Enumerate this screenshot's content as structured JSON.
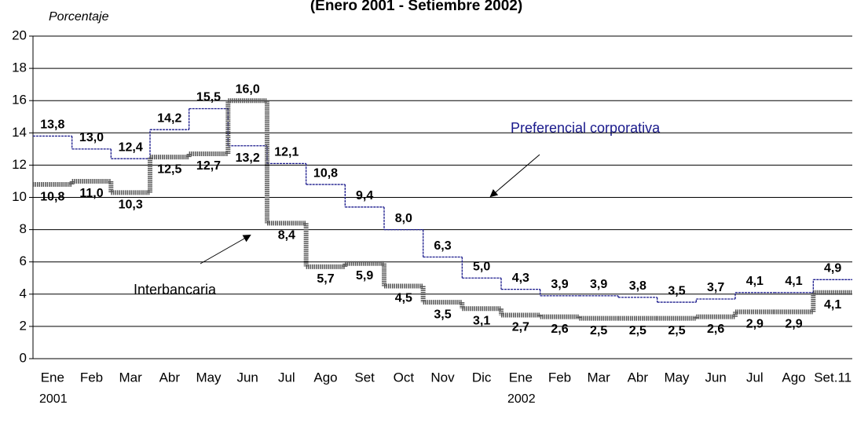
{
  "chart_data": {
    "type": "step-line",
    "title": "(Enero 2001 - Setiembre 2002)",
    "y_label": "Porcentaje",
    "categories": [
      "Ene",
      "Feb",
      "Mar",
      "Abr",
      "May",
      "Jun",
      "Jul",
      "Ago",
      "Set",
      "Oct",
      "Nov",
      "Dic",
      "Ene",
      "Feb",
      "Mar",
      "Abr",
      "May",
      "Jun",
      "Jul",
      "Ago",
      "Set.11"
    ],
    "category_years": [
      "2001",
      null,
      null,
      null,
      null,
      null,
      null,
      null,
      null,
      null,
      null,
      null,
      "2002",
      null,
      null,
      null,
      null,
      null,
      null,
      null,
      null
    ],
    "series": [
      {
        "name": "Preferencial corporativa",
        "color": "#1a1a8c",
        "values": [
          13.8,
          13.0,
          12.4,
          14.2,
          15.5,
          13.2,
          12.1,
          10.8,
          9.4,
          8.0,
          6.3,
          5.0,
          4.3,
          3.9,
          3.9,
          3.8,
          3.5,
          3.7,
          4.1,
          4.1,
          4.9
        ],
        "value_labels": [
          "13,8",
          "13,0",
          "12,4",
          "14,2",
          "15,5",
          "13,2",
          "12,1",
          "10,8",
          "9,4",
          "8,0",
          "6,3",
          "5,0",
          "4,3",
          "3,9",
          "3,9",
          "3,8",
          "3,5",
          "3,7",
          "4,1",
          "4,1",
          "4,9"
        ]
      },
      {
        "name": "Interbancaria",
        "color": "#555555",
        "values": [
          10.8,
          11.0,
          10.3,
          12.5,
          12.7,
          16.0,
          8.4,
          5.7,
          5.9,
          4.5,
          3.5,
          3.1,
          2.7,
          2.6,
          2.5,
          2.5,
          2.5,
          2.6,
          2.9,
          2.9,
          4.1
        ],
        "value_labels": [
          "10,8",
          "11,0",
          "10,3",
          "12,5",
          "12,7",
          "16,0",
          "8,4",
          "5,7",
          "5,9",
          "4,5",
          "3,5",
          "3,1",
          "2,7",
          "2,6",
          "2,5",
          "2,5",
          "2,5",
          "2,6",
          "2,9",
          "2,9",
          "4,1"
        ]
      }
    ],
    "ylim": [
      0,
      20
    ],
    "yticks": [
      0,
      2,
      4,
      6,
      8,
      10,
      12,
      14,
      16,
      18,
      20
    ],
    "grid": true
  }
}
